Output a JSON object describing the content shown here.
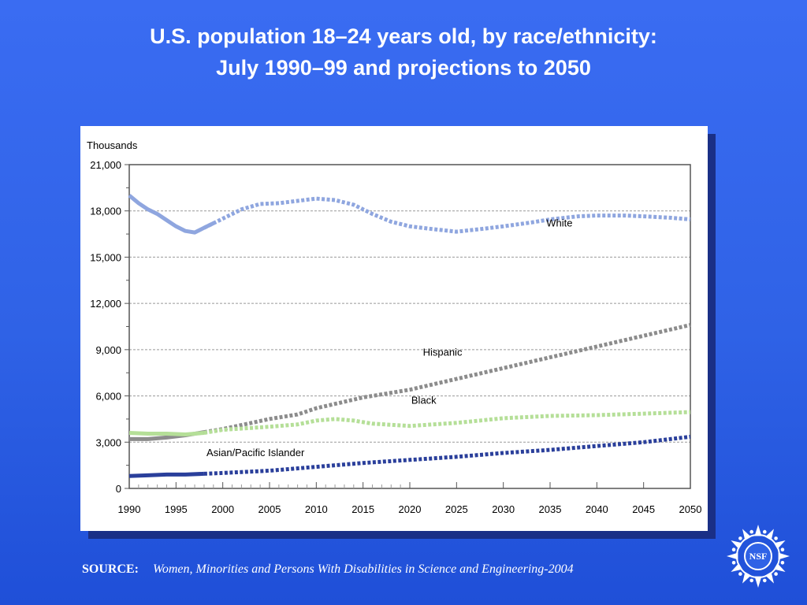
{
  "title": {
    "line1": "U.S. population 18–24 years old, by race/ethnicity:",
    "line2": "July 1990–99 and projections to 2050"
  },
  "source": {
    "label": "SOURCE:",
    "text": "Women, Minorities and Persons With Disabilities in Science and Engineering-2004"
  },
  "logo": {
    "text": "NSF"
  },
  "colors": {
    "background": "#2f62e6",
    "white_series": "#8fa6df",
    "hispanic_series": "#8c8c8c",
    "black_series": "#b5df98",
    "asian_series": "#2a3f9b",
    "gridline": "#999999",
    "axis": "#555555"
  },
  "chart_data": {
    "type": "line",
    "ylabel": "Thousands",
    "ylim": [
      0,
      21000
    ],
    "xlim": [
      1990,
      2050
    ],
    "yticks": [
      0,
      3000,
      6000,
      9000,
      12000,
      15000,
      18000,
      21000
    ],
    "ytick_labels": [
      "0",
      "3,000",
      "6,000",
      "9,000",
      "12,000",
      "15,000",
      "18,000",
      "21,000"
    ],
    "xticks": [
      1990,
      1995,
      2000,
      2005,
      2010,
      2015,
      2020,
      2025,
      2030,
      2035,
      2040,
      2045,
      2050
    ],
    "xtick_labels": [
      "1990",
      "1995",
      "2000",
      "2005",
      "2010",
      "2015",
      "2020",
      "2025",
      "2030",
      "2035",
      "2040",
      "2045",
      "2050"
    ],
    "grid": "horizontal dashed",
    "actual_through": 1999,
    "series": [
      {
        "name": "White",
        "color": "#8fa6df",
        "x": [
          1990,
          1991,
          1992,
          1993,
          1994,
          1995,
          1996,
          1997,
          1998,
          1999,
          2000,
          2002,
          2004,
          2006,
          2008,
          2010,
          2012,
          2014,
          2016,
          2018,
          2020,
          2022,
          2025,
          2028,
          2030,
          2033,
          2035,
          2038,
          2040,
          2043,
          2045,
          2048,
          2050
        ],
        "y": [
          19000,
          18500,
          18100,
          17800,
          17400,
          17000,
          16700,
          16600,
          16900,
          17200,
          17500,
          18100,
          18450,
          18500,
          18650,
          18800,
          18700,
          18400,
          17800,
          17300,
          17000,
          16850,
          16650,
          16850,
          17000,
          17250,
          17450,
          17650,
          17700,
          17700,
          17650,
          17550,
          17450
        ]
      },
      {
        "name": "Hispanic",
        "color": "#8c8c8c",
        "x": [
          1990,
          1992,
          1994,
          1996,
          1998,
          2000,
          2005,
          2008,
          2010,
          2015,
          2020,
          2025,
          2030,
          2035,
          2040,
          2045,
          2050
        ],
        "y": [
          3200,
          3200,
          3300,
          3450,
          3650,
          3850,
          4500,
          4800,
          5200,
          5900,
          6400,
          7100,
          7800,
          8500,
          9200,
          9900,
          10600
        ]
      },
      {
        "name": "Black",
        "color": "#b5df98",
        "x": [
          1990,
          1992,
          1994,
          1996,
          1998,
          2000,
          2005,
          2008,
          2010,
          2012,
          2014,
          2016,
          2020,
          2025,
          2030,
          2035,
          2040,
          2045,
          2050
        ],
        "y": [
          3600,
          3550,
          3550,
          3500,
          3600,
          3800,
          4000,
          4150,
          4400,
          4500,
          4400,
          4200,
          4050,
          4250,
          4550,
          4700,
          4750,
          4850,
          4950
        ]
      },
      {
        "name": "Asian/Pacific Islander",
        "color": "#2a3f9b",
        "x": [
          1990,
          1992,
          1994,
          1996,
          1998,
          2000,
          2005,
          2010,
          2015,
          2020,
          2025,
          2030,
          2035,
          2040,
          2045,
          2050
        ],
        "y": [
          800,
          850,
          900,
          900,
          950,
          1000,
          1150,
          1400,
          1650,
          1850,
          2050,
          2300,
          2500,
          2750,
          3000,
          3350
        ]
      }
    ]
  }
}
